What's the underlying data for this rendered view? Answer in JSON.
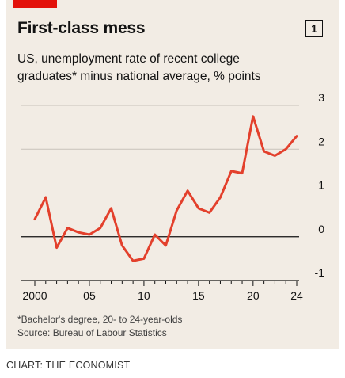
{
  "header": {
    "title": "First-class mess",
    "badge": "1",
    "subtitle": "US, unemployment rate of recent college graduates* minus national average, % points"
  },
  "footnotes": {
    "note": "*Bachelor's degree, 20- to 24-year-olds",
    "source": "Source: Bureau of Labour Statistics"
  },
  "credit": "CHART: THE ECONOMIST",
  "colors": {
    "background": "#f2ece4",
    "accent": "#e3120b",
    "line": "#e3402c",
    "grid": "#c8c2ba",
    "zero_line": "#121212"
  },
  "chart_data": {
    "type": "line",
    "title": "First-class mess",
    "subtitle": "US, unemployment rate of recent college graduates* minus national average, % points",
    "xlabel": "",
    "ylabel": "",
    "xlim": [
      2000,
      2024
    ],
    "ylim": [
      -1,
      3
    ],
    "grid": true,
    "y_axis_side": "right",
    "x_ticks": [
      {
        "value": 2000,
        "label": "2000"
      },
      {
        "value": 2005,
        "label": "05"
      },
      {
        "value": 2010,
        "label": "10"
      },
      {
        "value": 2015,
        "label": "15"
      },
      {
        "value": 2020,
        "label": "20"
      },
      {
        "value": 2024,
        "label": "24"
      }
    ],
    "y_ticks": [
      {
        "value": 3,
        "label": "3"
      },
      {
        "value": 2,
        "label": "2"
      },
      {
        "value": 1,
        "label": "1"
      },
      {
        "value": 0,
        "label": "0"
      },
      {
        "value": -1,
        "label": "-1"
      }
    ],
    "series": [
      {
        "x": [
          2000,
          2001,
          2002,
          2003,
          2004,
          2005,
          2006,
          2007,
          2008,
          2009,
          2010,
          2011,
          2012,
          2013,
          2014,
          2015,
          2016,
          2017,
          2018,
          2019,
          2020,
          2021,
          2022,
          2023,
          2024
        ],
        "values": [
          0.4,
          0.9,
          -0.25,
          0.2,
          0.1,
          0.05,
          0.2,
          0.65,
          -0.2,
          -0.55,
          -0.5,
          0.05,
          -0.2,
          0.6,
          1.05,
          0.65,
          0.55,
          0.9,
          1.5,
          1.45,
          2.75,
          1.95,
          1.85,
          2.0,
          2.3
        ]
      }
    ]
  }
}
